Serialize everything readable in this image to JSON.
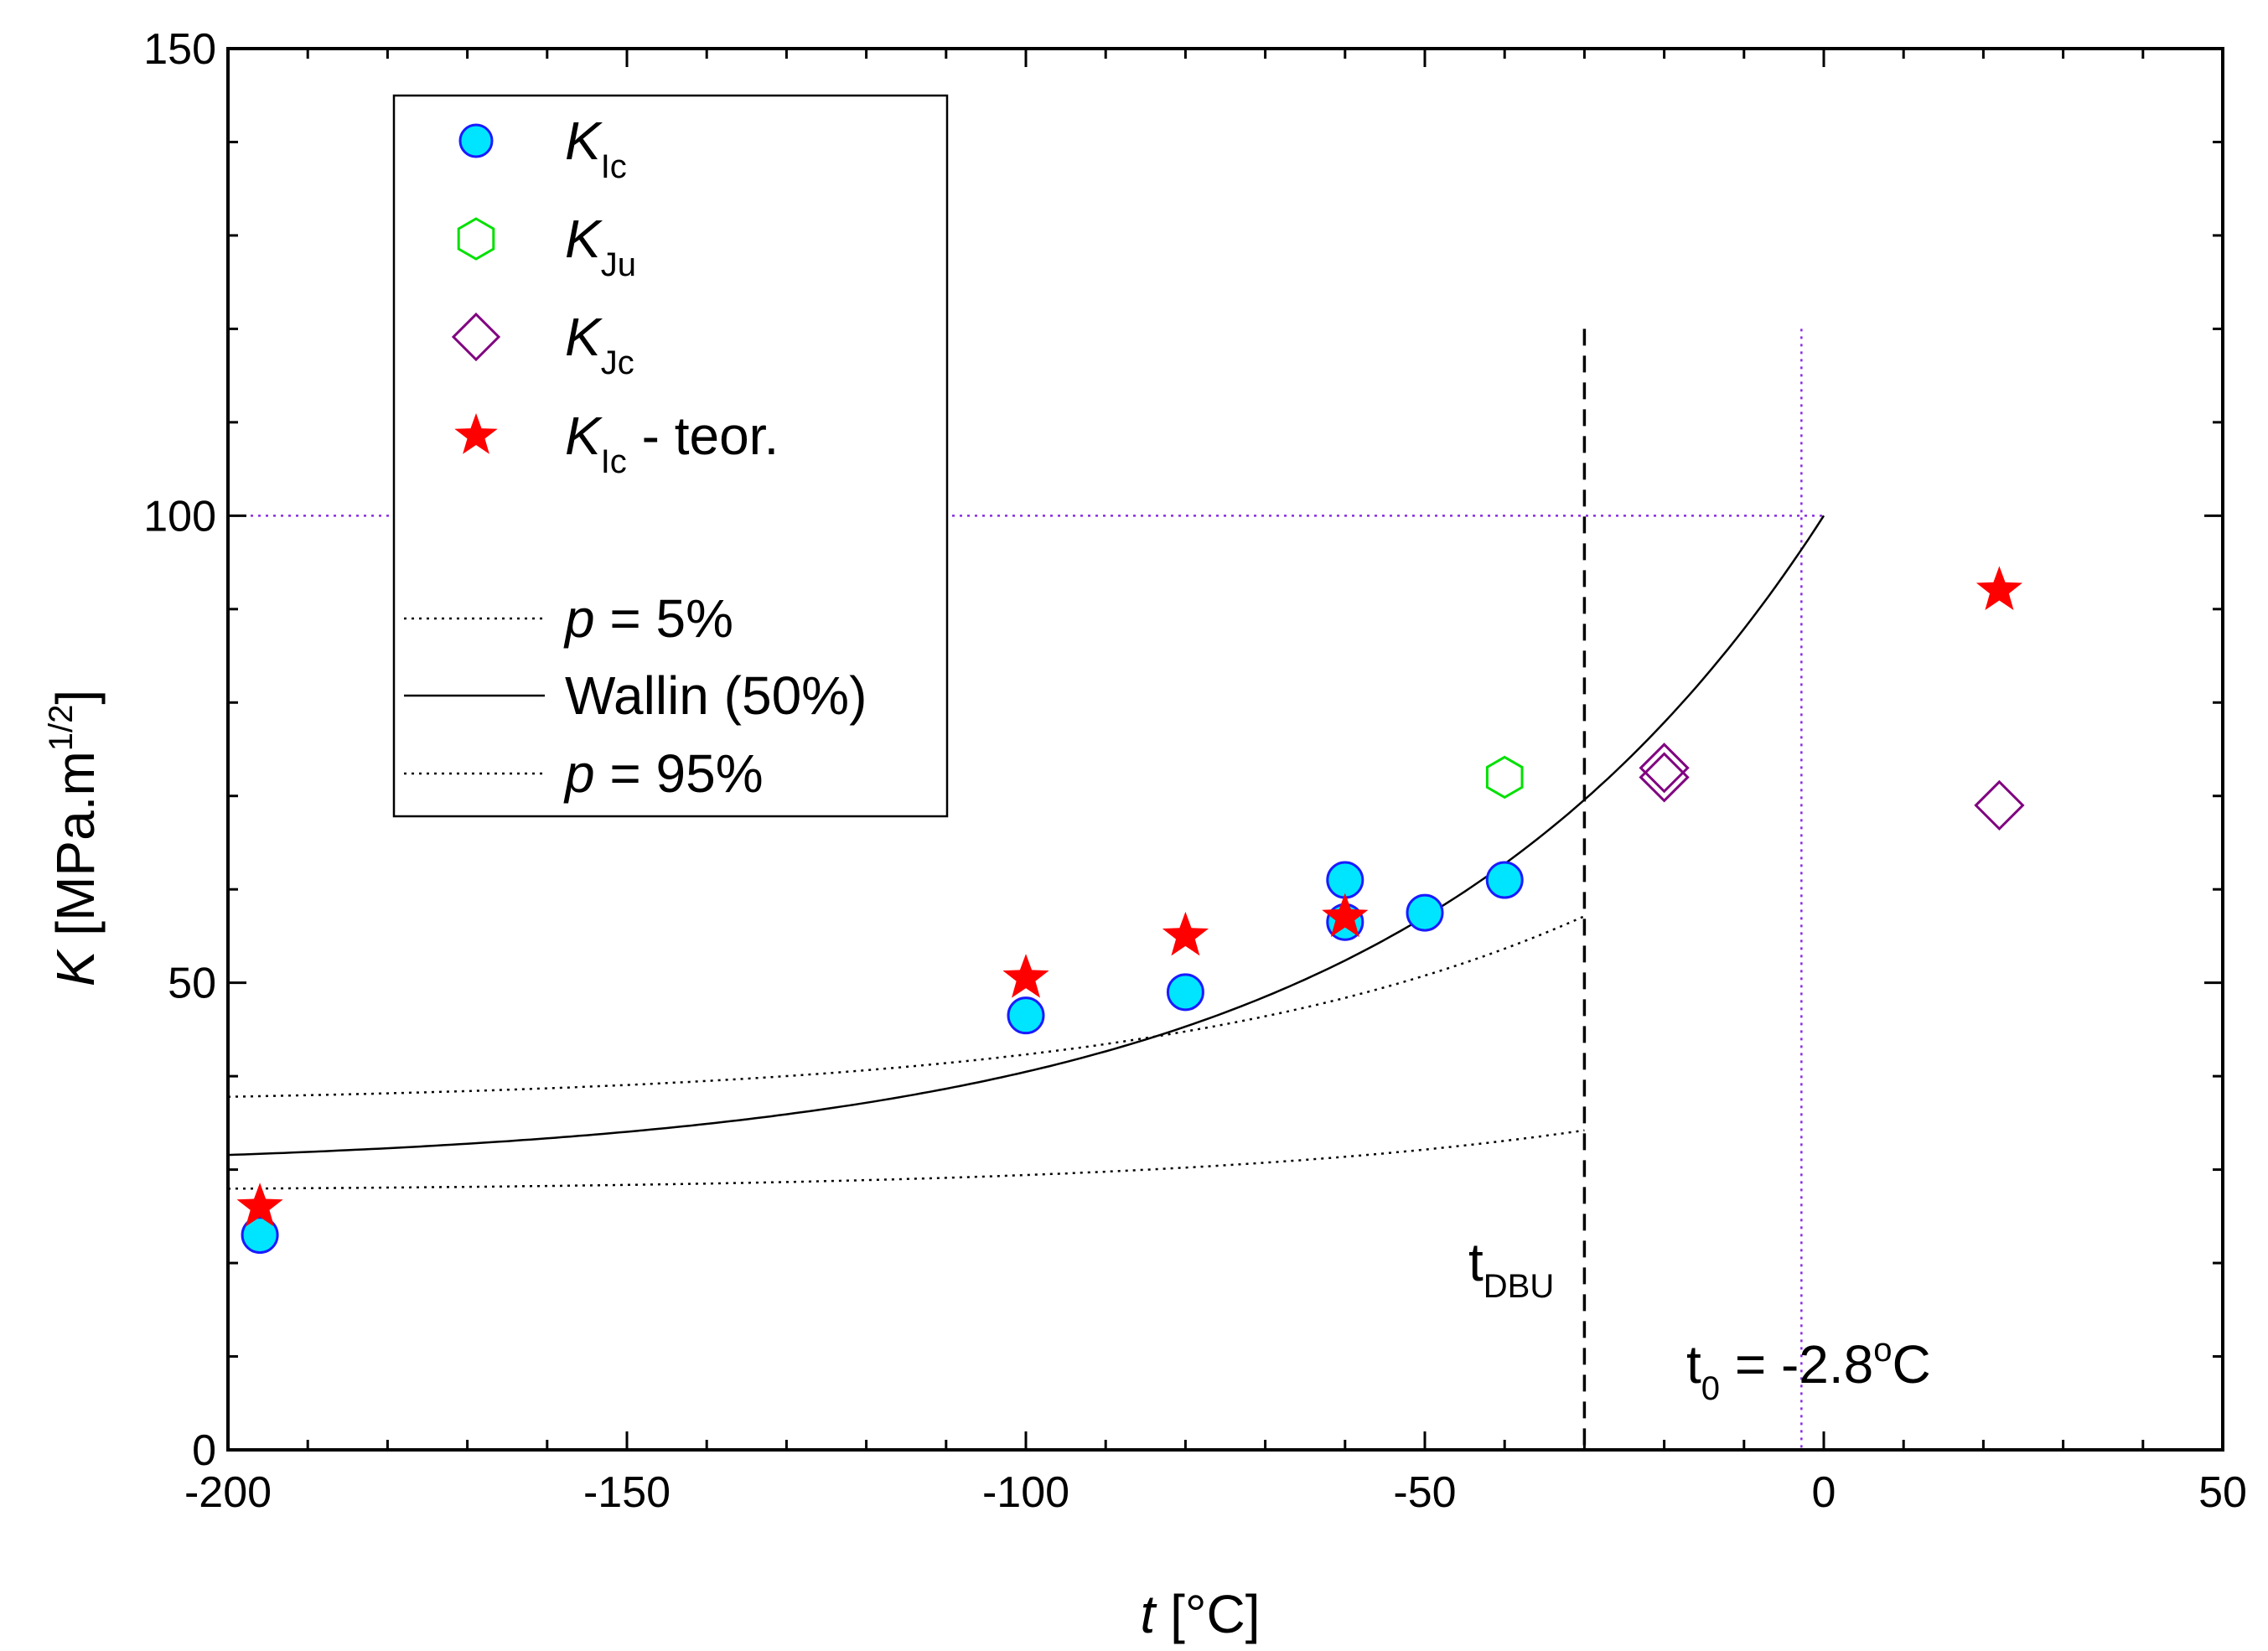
{
  "chart_data": {
    "type": "scatter",
    "xlim": [
      -200,
      50
    ],
    "ylim": [
      0,
      150
    ],
    "x_ticks": [
      -200,
      -150,
      -100,
      -50,
      0,
      50
    ],
    "y_ticks": [
      0,
      50,
      100,
      150
    ],
    "x_minor_step": 10,
    "y_minor_step": 10,
    "xlabel": {
      "var": "t",
      "unit": " [°C]"
    },
    "ylabel": {
      "var": "K",
      "unit": " [MPa.m",
      "sup": "1/2",
      "close": "]"
    },
    "series": [
      {
        "name": "K_Ic",
        "marker": "circle",
        "color": "#00e5ff",
        "edge": "#1a1aff",
        "x": [
          -196,
          -100,
          -80,
          -60,
          -60,
          -50,
          -40
        ],
        "y": [
          23,
          46.5,
          49,
          56.5,
          61,
          57.5,
          61
        ]
      },
      {
        "name": "K_Ju",
        "marker": "hexagon",
        "color": "#00e000",
        "x": [
          -40
        ],
        "y": [
          72
        ]
      },
      {
        "name": "K_Jc",
        "marker": "diamond",
        "color": "#800080",
        "x": [
          -20,
          -20,
          22
        ],
        "y": [
          73,
          72,
          69
        ]
      },
      {
        "name": "K_Ic - teor.",
        "marker": "star",
        "color": "#ff0000",
        "x": [
          -196,
          -100,
          -80,
          -60,
          22
        ],
        "y": [
          26,
          50.5,
          55,
          57,
          92
        ]
      }
    ],
    "curves": [
      {
        "name": "p = 5%",
        "style": "dotted",
        "x_range": [
          -200,
          -30
        ],
        "model": "master_curve",
        "a": 27.7,
        "b": 11.5
      },
      {
        "name": "Wallin (50%)",
        "style": "solid",
        "x_range": [
          -200,
          0
        ],
        "model": "master_curve",
        "a": 30,
        "b": 70
      },
      {
        "name": "p = 95%",
        "style": "dotted",
        "x_range": [
          -200,
          -30
        ],
        "model": "master_curve",
        "a": 37,
        "b": 35.6
      }
    ],
    "reference_lines": [
      {
        "name": "t0 vertical",
        "orientation": "vertical",
        "value": -2.8,
        "color": "#8a2be2",
        "style": "dotted"
      },
      {
        "name": "K=100 horizontal",
        "orientation": "horizontal",
        "value": 100,
        "color": "#8a2be2",
        "style": "dotted"
      },
      {
        "name": "tDBU",
        "orientation": "vertical",
        "value": -30,
        "color": "#000000",
        "style": "dashed"
      }
    ]
  },
  "legend": {
    "entries": [
      {
        "var": "K",
        "sub": "Ic",
        "suffix": ""
      },
      {
        "var": "K",
        "sub": "Ju",
        "suffix": ""
      },
      {
        "var": "K",
        "sub": "Jc",
        "suffix": ""
      },
      {
        "var": "K",
        "sub": "Ic",
        "suffix": " - teor."
      }
    ],
    "lines": [
      {
        "italic": "p",
        "rest": " = 5%"
      },
      {
        "italic": "",
        "rest": "Wallin (50%)"
      },
      {
        "italic": "p",
        "rest": " = 95%"
      }
    ]
  },
  "annotations": {
    "tdbu": {
      "main": "t",
      "sub": "DBU"
    },
    "t0": {
      "main": "t",
      "sub": "0",
      "rest": " = -2.8",
      "deg": "o",
      "unit": "C"
    }
  }
}
